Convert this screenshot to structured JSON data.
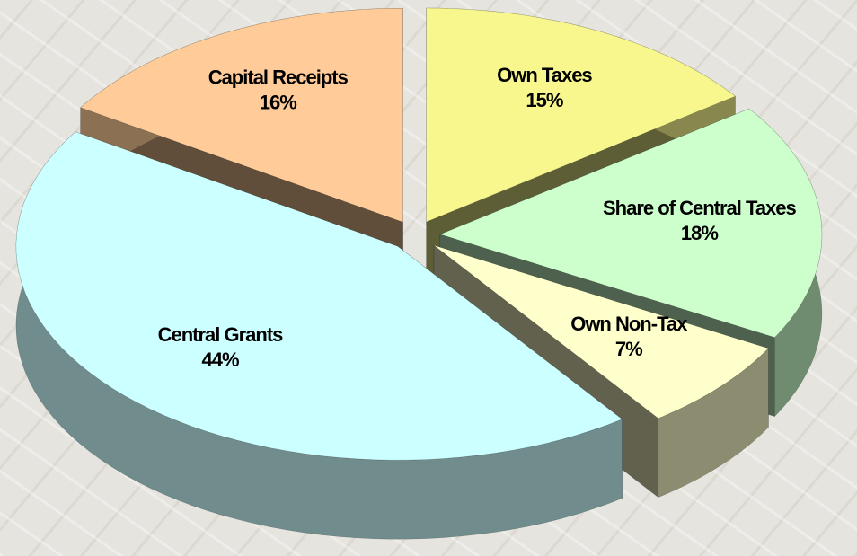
{
  "chart_data": {
    "type": "pie3d",
    "categories": [
      "Own Taxes",
      "Share of Central Taxes",
      "Own Non-Tax",
      "Central Grants",
      "Capital Receipts"
    ],
    "values": [
      15,
      18,
      7,
      44,
      16
    ],
    "value_labels": [
      "15%",
      "18%",
      "7%",
      "44%",
      "16%"
    ],
    "colors": [
      "#f7f78e",
      "#ccffcc",
      "#ffffcc",
      "#ccffff",
      "#ffcc99"
    ]
  }
}
